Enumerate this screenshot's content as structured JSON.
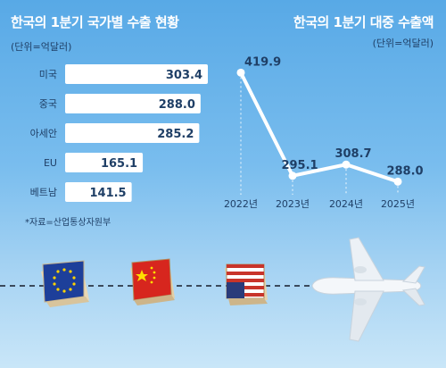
{
  "left_panel": {
    "title": "한국의 1분기 국가별 수출 현황",
    "unit": "(단위=억달러)",
    "source": "*자료=산업통상자원부"
  },
  "right_panel": {
    "title": "한국의 1분기 대중 수출액",
    "unit": "(단위=억달러)"
  },
  "chart_data": [
    {
      "type": "bar",
      "orientation": "horizontal",
      "title": "한국의 1분기 국가별 수출 현황",
      "unit": "(단위=억달러)",
      "categories": [
        "미국",
        "중국",
        "아세안",
        "EU",
        "베트남"
      ],
      "values": [
        303.4,
        288.0,
        285.2,
        165.1,
        141.5
      ],
      "value_labels": [
        "303.4",
        "288.0",
        "285.2",
        "165.1",
        "141.5"
      ],
      "bar_color": "#ffffff",
      "label_color": "#1f3f66"
    },
    {
      "type": "line",
      "title": "한국의 1분기 대중 수출액",
      "unit": "(단위=억달러)",
      "x": [
        "2022년",
        "2023년",
        "2024년",
        "2025년"
      ],
      "values": [
        419.9,
        295.1,
        308.7,
        288.0
      ],
      "value_labels": [
        "419.9",
        "295.1",
        "308.7",
        "288.0"
      ],
      "ylim": [
        270,
        430
      ],
      "line_color": "#ffffff",
      "gridlines": "vertical dashed"
    }
  ],
  "illustration": {
    "items": [
      "eu-flag-box",
      "china-flag-box",
      "usa-flag-box",
      "airplane"
    ],
    "colors": {
      "eu_blue": "#1d3f9a",
      "china_red": "#d7261e",
      "usa_red": "#c8342a",
      "usa_blue": "#2a3b7a"
    }
  }
}
